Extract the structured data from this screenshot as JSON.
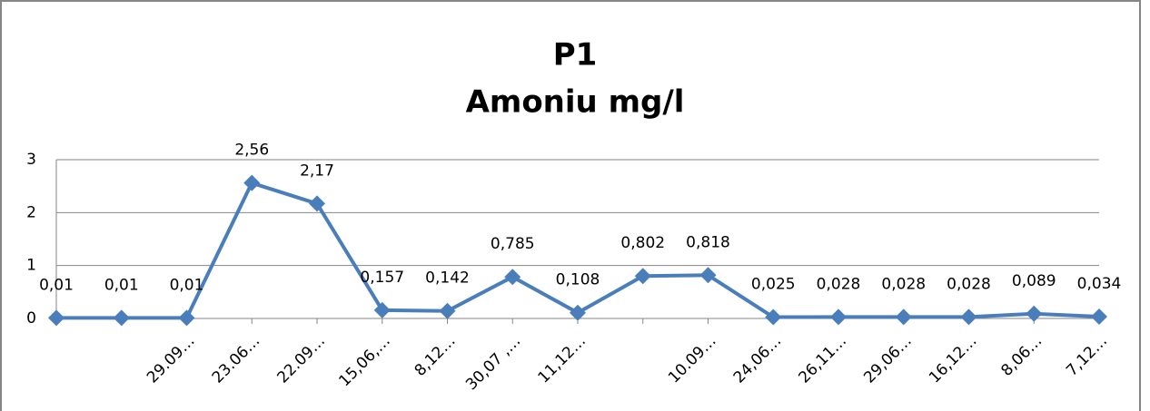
{
  "chart_data": {
    "type": "line",
    "title": "P1",
    "subtitle": "Amoniu mg/l",
    "categories": [
      null,
      null,
      "29.09…",
      "23.06…",
      "22.09…",
      "15,06,…",
      "8,12…",
      "30,07 ,…",
      "11,12…",
      null,
      "10.09…",
      "24,06…",
      "26,11…",
      "29,06…",
      "16,12…",
      "8,06…",
      "7,12…"
    ],
    "series": [
      {
        "name": "P1",
        "color": "#4a7ebb",
        "values": [
          0.01,
          0.01,
          0.01,
          2.56,
          2.17,
          0.157,
          0.142,
          0.785,
          0.108,
          0.802,
          0.818,
          0.025,
          0.028,
          0.028,
          0.028,
          0.089,
          0.034
        ],
        "value_labels": [
          "0,01",
          "0,01",
          "0,01",
          "2,56",
          "2,17",
          "0,157",
          "0,142",
          "0,785",
          "0,108",
          "0,802",
          "0,818",
          "0,025",
          "0,028",
          "0,028",
          "0,028",
          "0,089",
          "0,034"
        ]
      }
    ],
    "ylim": [
      0,
      3
    ],
    "yticks": [
      0,
      1,
      2,
      3
    ],
    "grid": true
  }
}
